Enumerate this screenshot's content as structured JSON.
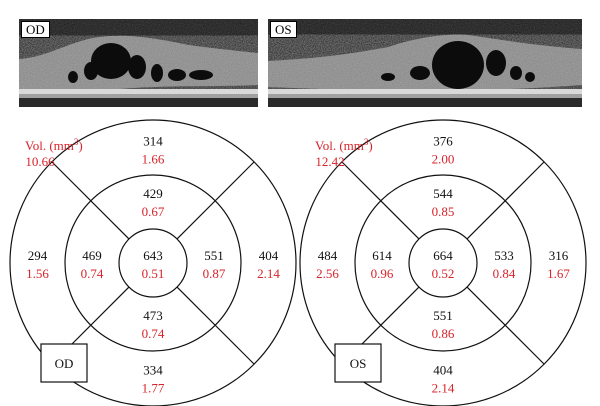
{
  "scans": [
    {
      "eye": "OD"
    },
    {
      "eye": "OS"
    }
  ],
  "maps": [
    {
      "eye_label": "OD",
      "vol_label": "Vol. (mm",
      "vol_unit_sup": "3",
      "vol_label_close": ")",
      "total_volume": "10.66",
      "center": {
        "thickness": "643",
        "volume": "0.51"
      },
      "inner": {
        "superior": {
          "thickness": "429",
          "volume": "0.67"
        },
        "nasal": {
          "thickness": "551",
          "volume": "0.87"
        },
        "inferior": {
          "thickness": "473",
          "volume": "0.74"
        },
        "temporal": {
          "thickness": "469",
          "volume": "0.74"
        }
      },
      "outer": {
        "superior": {
          "thickness": "314",
          "volume": "1.66"
        },
        "nasal": {
          "thickness": "404",
          "volume": "2.14"
        },
        "inferior": {
          "thickness": "334",
          "volume": "1.77"
        },
        "temporal": {
          "thickness": "294",
          "volume": "1.56"
        }
      }
    },
    {
      "eye_label": "OS",
      "vol_label": "Vol. (mm",
      "vol_unit_sup": "3",
      "vol_label_close": ")",
      "total_volume": "12.42",
      "center": {
        "thickness": "664",
        "volume": "0.52"
      },
      "inner": {
        "superior": {
          "thickness": "544",
          "volume": "0.85"
        },
        "nasal": {
          "thickness": "533",
          "volume": "0.84"
        },
        "inferior": {
          "thickness": "551",
          "volume": "0.86"
        },
        "temporal": {
          "thickness": "614",
          "volume": "0.96"
        }
      },
      "outer": {
        "superior": {
          "thickness": "376",
          "volume": "2.00"
        },
        "nasal": {
          "thickness": "316",
          "volume": "1.67"
        },
        "inferior": {
          "thickness": "404",
          "volume": "2.14"
        },
        "temporal": {
          "thickness": "484",
          "volume": "2.56"
        }
      }
    }
  ],
  "colors": {
    "value_red": "#d8232a",
    "value_black": "#111111",
    "line": "#111111"
  }
}
